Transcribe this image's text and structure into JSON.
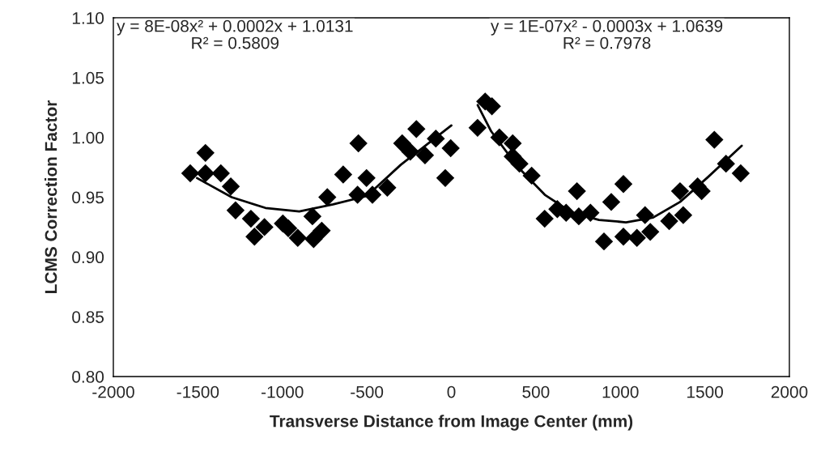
{
  "chart_data": {
    "type": "scatter",
    "xlabel": "Transverse Distance from Image Center (mm)",
    "ylabel": "LCMS Correction Factor",
    "xlim": [
      -2000,
      2000
    ],
    "xticks": [
      -2000,
      -1500,
      -1000,
      -500,
      0,
      500,
      1000,
      1500,
      2000
    ],
    "ylim": [
      0.8,
      1.1
    ],
    "yticks": [
      {
        "value": 0.8,
        "label": "0.80"
      },
      {
        "value": 0.85,
        "label": "0.85"
      },
      {
        "value": 0.9,
        "label": "0.90"
      },
      {
        "value": 0.95,
        "label": "0.95"
      },
      {
        "value": 1.0,
        "label": "1.00"
      },
      {
        "value": 1.05,
        "label": "1.05"
      },
      {
        "value": 1.1,
        "label": "1.10"
      }
    ],
    "grid": false,
    "legend": false,
    "marker": "diamond",
    "series": [
      {
        "color": "#000000",
        "x": [
          -1545,
          -1455,
          -1455,
          -1364,
          -1305,
          -1277,
          -1186,
          -1165,
          -1106,
          -997,
          -965,
          -909,
          -822,
          -815,
          -767,
          -734,
          -640,
          -550,
          -502,
          -555,
          -467,
          -379,
          -291,
          -207,
          -243,
          -156,
          -92,
          -4,
          -36,
          155,
          200,
          240,
          284,
          363,
          363,
          403,
          475,
          552,
          627,
          679,
          743,
          754,
          823,
          903,
          946,
          1018,
          1018,
          1098,
          1146,
          1177,
          1289,
          1353,
          1372,
          1457,
          1481,
          1556,
          1625,
          1712
        ],
        "values": [
          0.97,
          0.987,
          0.97,
          0.97,
          0.959,
          0.939,
          0.932,
          0.917,
          0.925,
          0.928,
          0.924,
          0.916,
          0.934,
          0.915,
          0.922,
          0.95,
          0.969,
          0.995,
          0.966,
          0.952,
          0.952,
          0.958,
          0.995,
          1.007,
          0.988,
          0.985,
          0.999,
          0.991,
          0.966,
          1.008,
          1.03,
          1.026,
          1.0,
          0.995,
          0.984,
          0.978,
          0.968,
          0.932,
          0.94,
          0.937,
          0.955,
          0.934,
          0.937,
          0.913,
          0.946,
          0.961,
          0.917,
          0.916,
          0.935,
          0.921,
          0.93,
          0.955,
          0.935,
          0.959,
          0.955,
          0.998,
          0.978,
          0.97
        ]
      },
      {
        "type": "line",
        "color": "#000000",
        "marker": "none",
        "line_style": "solid",
        "x": [
          -1505,
          -1300,
          -1100,
          -900,
          -700,
          -500,
          -300,
          -100,
          0
        ],
        "values": [
          0.966,
          0.95,
          0.941,
          0.938,
          0.944,
          0.951,
          0.977,
          0.999,
          1.01
        ]
      },
      {
        "type": "line",
        "color": "#000000",
        "marker": "none",
        "line_style": "solid",
        "x": [
          156,
          236,
          395,
          553,
          715,
          874,
          1033,
          1194,
          1353,
          1512,
          1718
        ],
        "values": [
          1.027,
          1.005,
          0.975,
          0.952,
          0.937,
          0.931,
          0.929,
          0.933,
          0.946,
          0.966,
          0.993
        ]
      }
    ],
    "annotations": [
      "y = 8E-08x² + 0.0002x + 1.0131\nR² = 0.5809",
      "y = 1E-07x² - 0.0003x + 1.0639\nR² = 0.7978"
    ]
  }
}
